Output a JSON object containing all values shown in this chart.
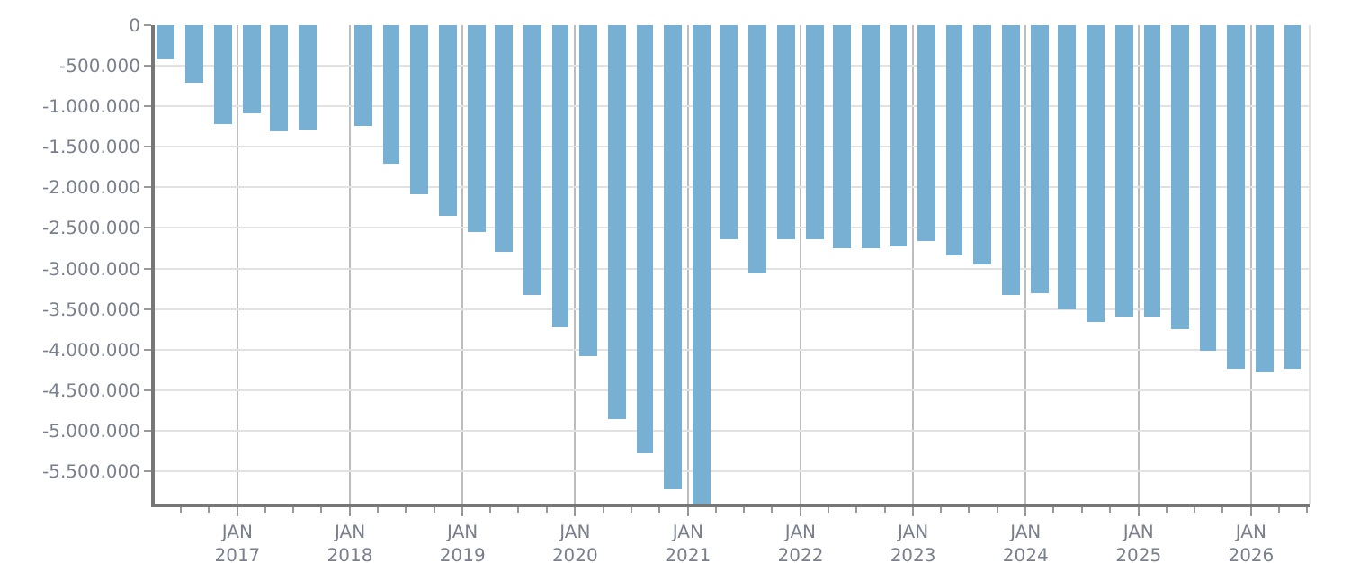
{
  "chart_data": {
    "type": "bar",
    "color": "#77b0d3",
    "x": [
      "2016-05-15",
      "2016-08-15",
      "2016-11-15",
      "2017-02-15",
      "2017-05-15",
      "2017-08-15",
      "2017-11-15",
      "2018-02-15",
      "2018-05-15",
      "2018-08-15",
      "2018-11-15",
      "2019-02-15",
      "2019-05-15",
      "2019-08-15",
      "2019-11-15",
      "2020-02-15",
      "2020-05-15",
      "2020-08-15",
      "2020-11-15",
      "2021-02-15",
      "2021-05-15",
      "2021-08-15",
      "2021-11-15",
      "2022-02-15",
      "2022-05-15",
      "2022-08-15",
      "2022-11-15",
      "2023-02-15",
      "2023-05-15",
      "2023-08-15",
      "2023-11-15",
      "2024-02-15",
      "2024-05-15",
      "2024-08-15",
      "2024-11-15",
      "2025-02-15",
      "2025-05-15",
      "2025-08-15",
      "2025-11-15",
      "2026-02-15",
      "2026-05-15"
    ],
    "values": [
      -420000,
      -710000,
      -1210000,
      -1080000,
      -1300000,
      -1280000,
      null,
      -1240000,
      -1700000,
      -2080000,
      -2340000,
      -2560000,
      -2800000,
      -3330000,
      -3730000,
      -4090000,
      -4860000,
      -5280000,
      -5720000,
      -5900000,
      -2630000,
      -3050000,
      -2630000,
      -2630000,
      -2740000,
      -2760000,
      -2720000,
      -2670000,
      -2850000,
      -2940000,
      -3330000,
      -3310000,
      -3510000,
      -3670000,
      -3600000,
      -3600000,
      -3750000,
      -4020000,
      -4240000,
      -4280000,
      -4240000
    ],
    "xlim": [
      "2016-04-08",
      "2026-07-10"
    ],
    "xticks": [
      {
        "value": "2017-01-01",
        "label": "JAN\n2017"
      },
      {
        "value": "2018-01-01",
        "label": "JAN\n2018"
      },
      {
        "value": "2019-01-01",
        "label": "JAN\n2019"
      },
      {
        "value": "2020-01-01",
        "label": "JAN\n2020"
      },
      {
        "value": "2021-01-01",
        "label": "JAN\n2021"
      },
      {
        "value": "2022-01-01",
        "label": "JAN\n2022"
      },
      {
        "value": "2023-01-01",
        "label": "JAN\n2023"
      },
      {
        "value": "2024-01-01",
        "label": "JAN\n2024"
      },
      {
        "value": "2025-01-01",
        "label": "JAN\n2025"
      },
      {
        "value": "2026-01-01",
        "label": "JAN\n2026"
      }
    ],
    "ylim": [
      -5900000,
      0
    ],
    "yticks": [
      0,
      {
        "value": -500000,
        "label": "-500.000"
      },
      {
        "value": -1000000,
        "label": "-1.000.000"
      },
      {
        "value": -1500000,
        "label": "-1.500.000"
      },
      {
        "value": -2000000,
        "label": "-2.000.000"
      },
      {
        "value": -2500000,
        "label": "-2.500.000"
      },
      {
        "value": -3000000,
        "label": "-3.000.000"
      },
      {
        "value": -3500000,
        "label": "-3.500.000"
      },
      {
        "value": -4000000,
        "label": "-4.000.000"
      },
      {
        "value": -4500000,
        "label": "-4.500.000"
      },
      {
        "value": -5000000,
        "label": "-5.000.000"
      },
      {
        "value": -5500000,
        "label": "-5.500.000"
      }
    ],
    "grid": true
  }
}
